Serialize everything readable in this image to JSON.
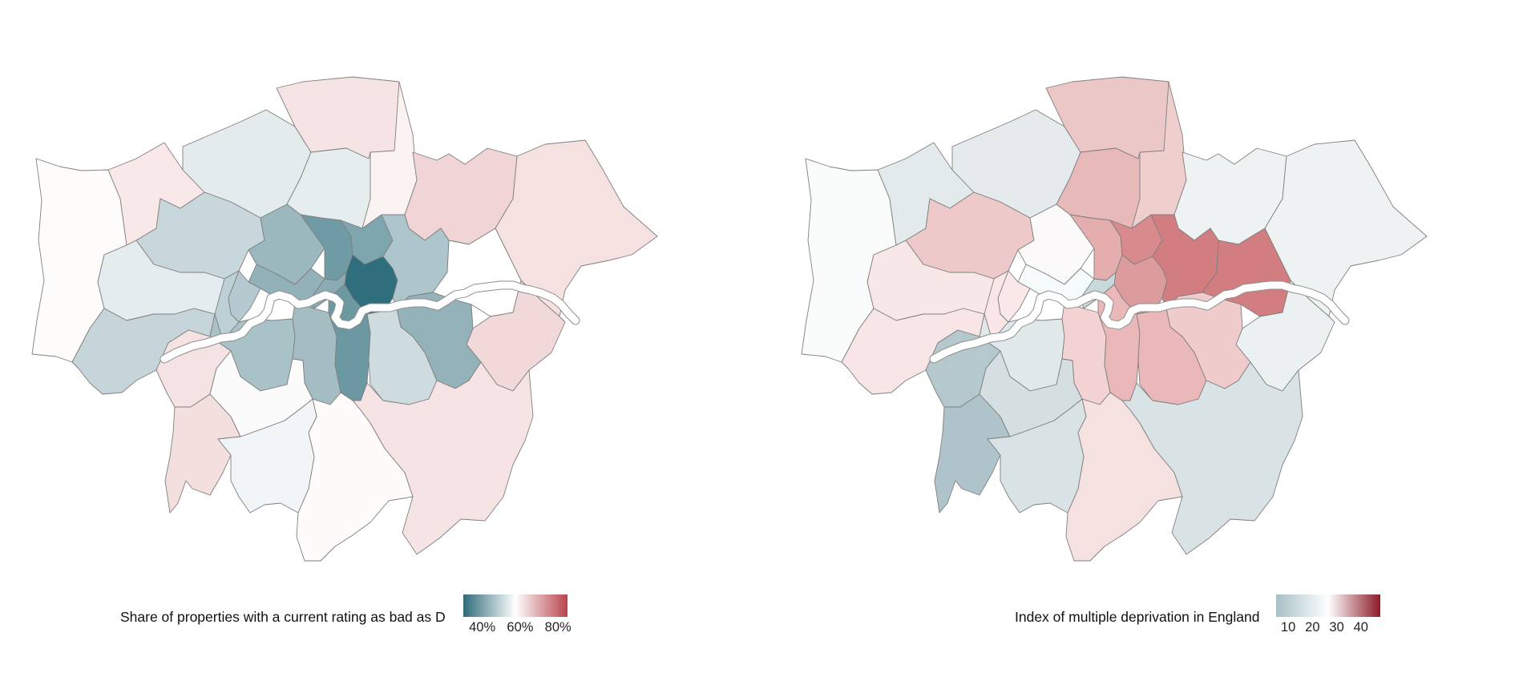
{
  "maps": [
    {
      "legend": {
        "title": "Share of properties with a current rating as bad as D",
        "ticks": [
          "40%",
          "60%",
          "80%"
        ],
        "tick_values": [
          40,
          60,
          80
        ],
        "range": [
          30,
          85
        ],
        "colors": [
          "#2e6a78",
          "#ffffff",
          "#b8444c"
        ]
      },
      "fills": {
        "hillingdon": "#fefcfb",
        "harrow": "#f8e8e8",
        "barnet": "#e4ebed",
        "enfield": "#f6e3e3",
        "waltham": "#fbf3f2",
        "redbridge": "#f1d4d5",
        "havering": "#f6e1e1",
        "brent": "#c7d7dc",
        "haringey": "#e6edef",
        "ealing": "#e5eced",
        "hounslow": "#c5d5da",
        "richmond": "#f5e2e2",
        "kingston": "#f4dfdf",
        "camden": "#9bb8bf",
        "islington": "#6f9ba4",
        "hackney": "#7ea6af",
        "towerhamlets": "#2f6e7c",
        "newham": "#adc6cc",
        "barking": "#ffffff",
        "bexley": "#f2d9d9",
        "westminster": "#93b1b8",
        "kensington": "#b5cad0",
        "hammersmith": "#bcd0d5",
        "wandsworth": "#a9c2c8",
        "lambeth": "#a3bdc3",
        "southwark": "#6c98a1",
        "lewisham": "#cedcdf",
        "greenwich": "#94b2b9",
        "bromley": "#f6e4e4",
        "croydon": "#fefbfa",
        "sutton": "#f2f5f8",
        "merton": "#fbfbfb",
        "city": "#8aabb3"
      }
    },
    {
      "legend": {
        "title": "Index of multiple deprivation in England",
        "ticks": [
          "10",
          "20",
          "30",
          "40"
        ],
        "tick_values": [
          10,
          20,
          30,
          40
        ],
        "range": [
          5,
          48
        ],
        "colors": [
          "#a6c0c6",
          "#ffffff",
          "#8c1a26"
        ]
      },
      "fills": {
        "hillingdon": "#fafbfb",
        "harrow": "#e3eaec",
        "barnet": "#e5ebec",
        "enfield": "#ecc7c7",
        "waltham": "#efcece",
        "redbridge": "#eef2f3",
        "havering": "#eef2f3",
        "brent": "#eec9c9",
        "haringey": "#e8b9b9",
        "ealing": "#f8e7e7",
        "hounslow": "#f8e5e5",
        "richmond": "#b4c8cd",
        "kingston": "#aec4ca",
        "camden": "#fbf9f9",
        "islington": "#e4aeae",
        "hackney": "#d98a8d",
        "towerhamlets": "#dc9c9d",
        "newham": "#d27e81",
        "barking": "#d27e81",
        "bexley": "#ebf0f1",
        "westminster": "#f5fafb",
        "kensington": "#fae8e8",
        "hammersmith": "#fae6e6",
        "wandsworth": "#e0e8ea",
        "lambeth": "#f2d2d2",
        "southwark": "#eab8b8",
        "lewisham": "#eab8b8",
        "greenwich": "#efcbcb",
        "bromley": "#d9e3e6",
        "croydon": "#f6e1e1",
        "sutton": "#d9e3e6",
        "merton": "#d5dfe2",
        "city": "#c9d8db"
      }
    }
  ]
}
